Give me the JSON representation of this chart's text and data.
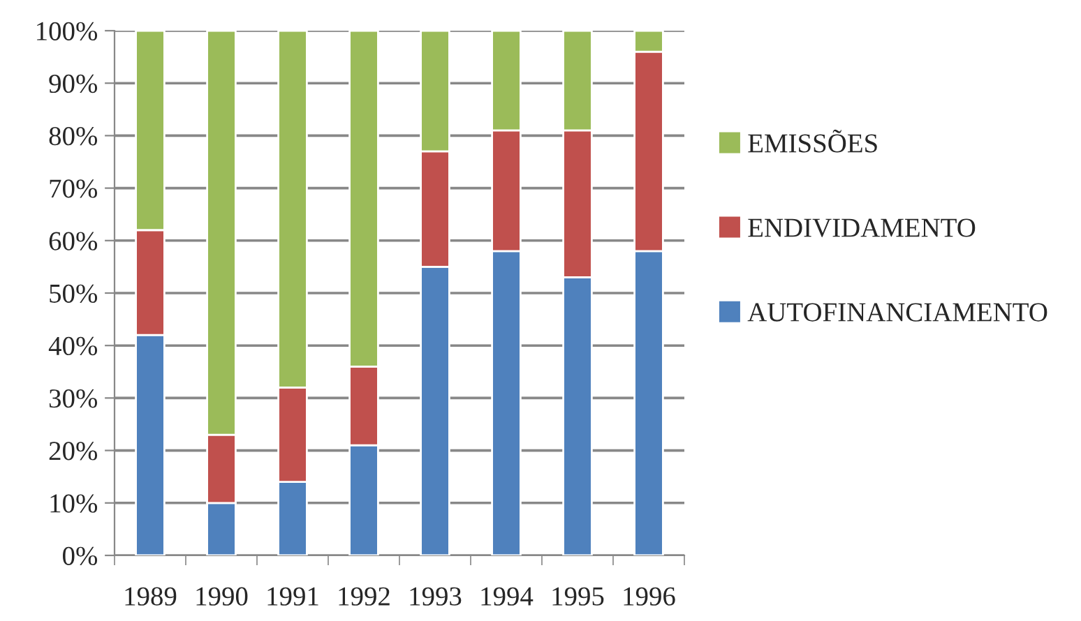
{
  "chart_data": {
    "type": "bar",
    "stacked": true,
    "categories": [
      "1989",
      "1990",
      "1991",
      "1992",
      "1993",
      "1994",
      "1995",
      "1996"
    ],
    "series": [
      {
        "name": "AUTOFINANCIAMENTO",
        "color": "#4f81bd",
        "values": [
          42,
          10,
          14,
          21,
          55,
          58,
          53,
          58
        ]
      },
      {
        "name": "ENDIVIDAMENTO",
        "color": "#c0504d",
        "values": [
          20,
          13,
          18,
          15,
          22,
          23,
          28,
          38
        ]
      },
      {
        "name": "EMISSÕES",
        "color": "#9bbb59",
        "values": [
          38,
          77,
          68,
          64,
          23,
          19,
          19,
          4
        ]
      }
    ],
    "ylim": [
      0,
      100
    ],
    "yticks": [
      {
        "value": 0,
        "label": "0%"
      },
      {
        "value": 10,
        "label": "10%"
      },
      {
        "value": 20,
        "label": "20%"
      },
      {
        "value": 30,
        "label": "30%"
      },
      {
        "value": 40,
        "label": "40%"
      },
      {
        "value": 50,
        "label": "50%"
      },
      {
        "value": 60,
        "label": "60%"
      },
      {
        "value": 70,
        "label": "70%"
      },
      {
        "value": 80,
        "label": "80%"
      },
      {
        "value": 90,
        "label": "90%"
      },
      {
        "value": 100,
        "label": "100%"
      }
    ],
    "grid": "y",
    "legend": "right"
  }
}
